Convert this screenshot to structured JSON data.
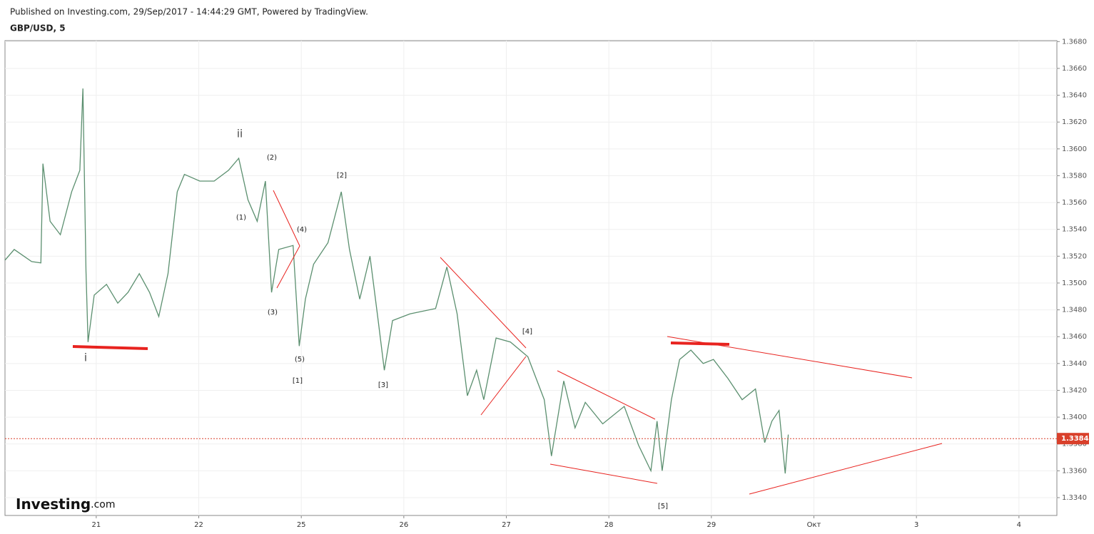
{
  "header": {
    "published": "Published on Investing.com, 29/Sep/2017 - 14:44:29 GMT, Powered by TradingView.",
    "symbol": "GBP/USD, 5"
  },
  "logo": {
    "name": "Investing",
    "suffix": ".com"
  },
  "chart_data": {
    "type": "line",
    "color": "#5b8f6f",
    "grid": true,
    "x": [
      -0.89,
      -0.8,
      -0.63,
      -0.54,
      -0.52,
      -0.45,
      -0.35,
      -0.24,
      -0.16,
      -0.13,
      -0.1,
      -0.08,
      -0.02,
      0.1,
      0.21,
      0.31,
      0.42,
      0.52,
      0.61,
      0.7,
      0.79,
      0.86,
      1.01,
      1.15,
      1.29,
      1.39,
      1.48,
      1.57,
      1.65,
      1.71,
      1.78,
      1.92,
      1.98,
      2.04,
      2.12,
      2.26,
      2.39,
      2.47,
      2.57,
      2.67,
      2.75,
      2.81,
      2.89,
      3.06,
      3.31,
      3.42,
      3.52,
      3.62,
      3.71,
      3.78,
      3.9,
      4.04,
      4.21,
      4.37,
      4.44,
      4.56,
      4.67,
      4.77,
      4.94,
      5.15,
      5.29,
      5.41,
      5.47,
      5.52,
      5.61,
      5.69,
      5.8,
      5.92,
      6.02,
      6.16,
      6.3,
      6.43,
      6.52,
      6.59,
      6.66,
      6.72,
      6.75
    ],
    "values": [
      1.3517,
      1.3525,
      1.3516,
      1.3515,
      1.3589,
      1.3546,
      1.3536,
      1.3568,
      1.3584,
      1.3645,
      1.3509,
      1.3456,
      1.3491,
      1.3499,
      1.3485,
      1.3493,
      1.3507,
      1.3493,
      1.3475,
      1.3507,
      1.3568,
      1.3581,
      1.3576,
      1.3576,
      1.3584,
      1.3593,
      1.3562,
      1.3546,
      1.3576,
      1.3493,
      1.3525,
      1.3528,
      1.3453,
      1.3488,
      1.3514,
      1.353,
      1.3568,
      1.3525,
      1.3488,
      1.352,
      1.3472,
      1.3435,
      1.3472,
      1.3477,
      1.3481,
      1.3512,
      1.3477,
      1.3416,
      1.3435,
      1.3413,
      1.3459,
      1.3456,
      1.3445,
      1.3413,
      1.3371,
      1.3427,
      1.3392,
      1.3411,
      1.3395,
      1.3408,
      1.3379,
      1.336,
      1.3397,
      1.336,
      1.3413,
      1.3443,
      1.345,
      1.344,
      1.3443,
      1.3429,
      1.3413,
      1.3421,
      1.3381,
      1.3397,
      1.3405,
      1.3358,
      1.3387
    ],
    "xlim": [
      -0.89,
      9.37
    ],
    "xticks": [
      {
        "value": 0,
        "label": "21"
      },
      {
        "value": 1,
        "label": "22"
      },
      {
        "value": 2,
        "label": "25"
      },
      {
        "value": 3,
        "label": "26"
      },
      {
        "value": 4,
        "label": "27"
      },
      {
        "value": 5,
        "label": "28"
      },
      {
        "value": 6,
        "label": "29"
      },
      {
        "value": 7,
        "label": "Окт"
      },
      {
        "value": 8,
        "label": "3"
      },
      {
        "value": 9,
        "label": "4"
      }
    ],
    "ylim": [
      1.33267,
      1.36807
    ],
    "yticks": [
      {
        "value": 1.334,
        "label": "1.3340"
      },
      {
        "value": 1.336,
        "label": "1.3360"
      },
      {
        "value": 1.338,
        "label": "1.3380"
      },
      {
        "value": 1.34,
        "label": "1.3400"
      },
      {
        "value": 1.342,
        "label": "1.3420"
      },
      {
        "value": 1.344,
        "label": "1.3440"
      },
      {
        "value": 1.346,
        "label": "1.3460"
      },
      {
        "value": 1.348,
        "label": "1.3480"
      },
      {
        "value": 1.35,
        "label": "1.3500"
      },
      {
        "value": 1.352,
        "label": "1.3520"
      },
      {
        "value": 1.354,
        "label": "1.3540"
      },
      {
        "value": 1.356,
        "label": "1.3560"
      },
      {
        "value": 1.358,
        "label": "1.3580"
      },
      {
        "value": 1.36,
        "label": "1.3600"
      },
      {
        "value": 1.362,
        "label": "1.3620"
      },
      {
        "value": 1.364,
        "label": "1.3640"
      },
      {
        "value": 1.366,
        "label": "1.3660"
      },
      {
        "value": 1.368,
        "label": "1.3680"
      }
    ],
    "last_price": {
      "value": 1.3384,
      "label": "1.3384"
    },
    "annotations": [
      "i",
      "ii",
      "(1)",
      "(2)",
      "(3)",
      "(4)",
      "(5)",
      "[1]",
      "[2]",
      "[3]",
      "[4]",
      "[5]"
    ]
  }
}
